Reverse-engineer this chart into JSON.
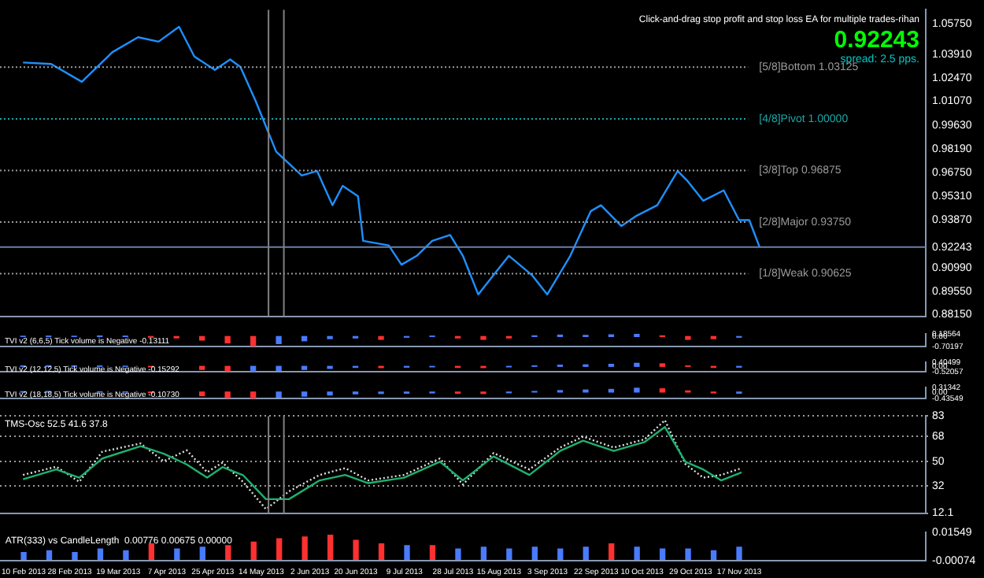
{
  "chart_data": [
    {
      "type": "line",
      "xlim": [
        "2013-02-01",
        "2014-01-29"
      ],
      "ylim": [
        0.8805,
        1.066
      ],
      "tick_labels": "y",
      "yticks": [
        {
          "value": 1.0575,
          "label": "1.05750"
        },
        {
          "value": 1.0391,
          "label": "1.03910"
        },
        {
          "value": 1.0247,
          "label": "1.02470"
        },
        {
          "value": 1.0107,
          "label": "1.01070"
        },
        {
          "value": 0.9963,
          "label": "0.99630"
        },
        {
          "value": 0.9819,
          "label": "0.98190"
        },
        {
          "value": 0.9675,
          "label": "0.96750"
        },
        {
          "value": 0.9531,
          "label": "0.95310"
        },
        {
          "value": 0.9387,
          "label": "0.93870"
        },
        {
          "value": 0.92243,
          "label": "0.92243"
        },
        {
          "value": 0.9099,
          "label": "0.90990"
        },
        {
          "value": 0.8955,
          "label": "0.89550"
        },
        {
          "value": 0.8815,
          "label": "0.88150"
        }
      ],
      "x": [
        "2013-02-10",
        "2013-02-21",
        "2013-03-05",
        "2013-03-17",
        "2013-03-27",
        "2013-04-04",
        "2013-04-12",
        "2013-04-18",
        "2013-04-26",
        "2013-05-02",
        "2013-05-06",
        "2013-05-12",
        "2013-05-20",
        "2013-05-30",
        "2013-06-05",
        "2013-06-11",
        "2013-06-15",
        "2013-06-21",
        "2013-06-23",
        "2013-07-03",
        "2013-07-08",
        "2013-07-14",
        "2013-07-20",
        "2013-07-27",
        "2013-08-01",
        "2013-08-07",
        "2013-08-13",
        "2013-08-19",
        "2013-08-28",
        "2013-09-03",
        "2013-09-12",
        "2013-09-20",
        "2013-09-24",
        "2013-10-02",
        "2013-10-08",
        "2013-10-16",
        "2013-10-24",
        "2013-10-28",
        "2013-11-03",
        "2013-11-11",
        "2013-11-17",
        "2013-11-21",
        "2013-11-25"
      ],
      "series": [
        {
          "color": "#1e90ff",
          "values": [
            1.0341,
            1.0332,
            1.0224,
            1.0404,
            1.0494,
            1.0467,
            1.0557,
            1.0377,
            1.0296,
            1.0359,
            1.0314,
            1.0107,
            0.9801,
            0.9657,
            0.9684,
            0.9477,
            0.9594,
            0.9531,
            0.9261,
            0.9234,
            0.9117,
            0.9171,
            0.9261,
            0.9297,
            0.9171,
            0.8937,
            0.9054,
            0.9171,
            0.9054,
            0.8937,
            0.9171,
            0.9441,
            0.9477,
            0.9351,
            0.9414,
            0.9477,
            0.9684,
            0.9621,
            0.9504,
            0.9567,
            0.9387,
            0.9387,
            0.9224
          ]
        }
      ],
      "ref_lines": [
        {
          "axis": "y",
          "value": 1.03125,
          "label": "[5/8]Bottom 1.03125",
          "color": "#9a9a9a",
          "line_style": "dotted"
        },
        {
          "axis": "y",
          "value": 1.0,
          "label": "[4/8]Pivot 1.00000",
          "color": "#1aa7a7",
          "line_style": "dotted"
        },
        {
          "axis": "y",
          "value": 0.96875,
          "label": "[3/8]Top 0.96875",
          "color": "#9a9a9a",
          "line_style": "dotted"
        },
        {
          "axis": "y",
          "value": 0.9375,
          "label": "[2/8]Major 0.93750",
          "color": "#9a9a9a",
          "line_style": "dotted"
        },
        {
          "axis": "y",
          "value": 0.90625,
          "label": "[1/8]Weak 0.90625",
          "color": "#9a9a9a",
          "line_style": "dotted"
        },
        {
          "axis": "y",
          "value": 0.92243,
          "color": "#6a7fa8",
          "line_style": "solid"
        },
        {
          "axis": "x",
          "value": "2013-05-17",
          "color": "#808080",
          "line_style": "solid"
        },
        {
          "axis": "x",
          "value": "2013-05-23",
          "color": "#808080",
          "line_style": "solid"
        }
      ],
      "annotations": [
        "Click-and-drag stop profit and stop loss EA for multiple trades-rihan",
        "0.92243",
        "spread: 2.5 pps."
      ]
    },
    {
      "type": "bar",
      "title": "TVI v2 (6,6,5) Tick volume is Negative -0.13111",
      "xlim": [
        "2013-02-01",
        "2014-01-29"
      ],
      "ylim": [
        -0.70197,
        0.18564
      ],
      "tick_labels": "y",
      "yticks": [
        {
          "value": 0.18564,
          "label": "0.18564"
        },
        {
          "value": 0,
          "label": "0.00"
        },
        {
          "value": -0.70197,
          "label": "-0.70197"
        }
      ],
      "x": [
        "2013-02-10",
        "2013-02-20",
        "2013-03-02",
        "2013-03-12",
        "2013-03-22",
        "2013-04-01",
        "2013-04-11",
        "2013-04-21",
        "2013-05-01",
        "2013-05-11",
        "2013-05-21",
        "2013-05-31",
        "2013-06-10",
        "2013-06-20",
        "2013-06-30",
        "2013-07-10",
        "2013-07-20",
        "2013-07-30",
        "2013-08-09",
        "2013-08-19",
        "2013-08-29",
        "2013-09-08",
        "2013-09-18",
        "2013-09-28",
        "2013-10-08",
        "2013-10-18",
        "2013-10-28",
        "2013-11-07",
        "2013-11-17"
      ],
      "values": [
        0.02,
        0.03,
        0.02,
        0.04,
        0.03,
        -0.05,
        -0.1,
        -0.25,
        -0.45,
        -0.65,
        -0.5,
        -0.3,
        -0.15,
        -0.1,
        -0.2,
        -0.05,
        0.03,
        -0.1,
        -0.2,
        -0.1,
        0.05,
        0.1,
        0.08,
        0.12,
        0.17,
        0.05,
        -0.2,
        -0.15,
        -0.05
      ],
      "colors": [
        "#4a7bff",
        "#4a7bff",
        "#4a7bff",
        "#4a7bff",
        "#4a7bff",
        "#ff3030",
        "#ff3030",
        "#ff3030",
        "#ff3030",
        "#ff3030",
        "#4a7bff",
        "#4a7bff",
        "#4a7bff",
        "#4a7bff",
        "#ff3030",
        "#4a7bff",
        "#4a7bff",
        "#ff3030",
        "#ff3030",
        "#ff3030",
        "#4a7bff",
        "#4a7bff",
        "#4a7bff",
        "#4a7bff",
        "#4a7bff",
        "#ff3030",
        "#ff3030",
        "#ff3030",
        "#4a7bff"
      ]
    },
    {
      "type": "bar",
      "title": "TVI v2 (12,12,5) Tick volume is Negative -0.15292",
      "xlim": [
        "2013-02-01",
        "2014-01-29"
      ],
      "ylim": [
        -0.52057,
        0.40499
      ],
      "tick_labels": "y",
      "yticks": [
        {
          "value": 0.40499,
          "label": "0.40499"
        },
        {
          "value": 0,
          "label": "0.00"
        },
        {
          "value": -0.52057,
          "label": "-0.52057"
        }
      ],
      "x": [
        "2013-02-10",
        "2013-02-20",
        "2013-03-02",
        "2013-03-12",
        "2013-03-22",
        "2013-04-01",
        "2013-04-11",
        "2013-04-21",
        "2013-05-01",
        "2013-05-11",
        "2013-05-21",
        "2013-05-31",
        "2013-06-10",
        "2013-06-20",
        "2013-06-30",
        "2013-07-10",
        "2013-07-20",
        "2013-07-30",
        "2013-08-09",
        "2013-08-19",
        "2013-08-29",
        "2013-09-08",
        "2013-09-18",
        "2013-09-28",
        "2013-10-08",
        "2013-10-18",
        "2013-10-28",
        "2013-11-07",
        "2013-11-17"
      ],
      "values": [
        0.05,
        0.06,
        0.05,
        0.04,
        0.02,
        -0.05,
        null,
        -0.3,
        -0.45,
        -0.5,
        -0.4,
        -0.3,
        -0.2,
        -0.1,
        -0.12,
        -0.08,
        -0.05,
        -0.1,
        -0.12,
        -0.05,
        0.05,
        0.12,
        0.15,
        0.2,
        0.3,
        0.25,
        0.05,
        -0.1,
        -0.08
      ],
      "colors": [
        "#4a7bff",
        "#4a7bff",
        "#4a7bff",
        "#4a7bff",
        "#4a7bff",
        "#ff3030",
        "#ff3030",
        "#ff3030",
        "#ff3030",
        "#4a7bff",
        "#4a7bff",
        "#4a7bff",
        "#4a7bff",
        "#4a7bff",
        "#ff3030",
        "#4a7bff",
        "#4a7bff",
        "#ff3030",
        "#ff3030",
        "#4a7bff",
        "#4a7bff",
        "#4a7bff",
        "#4a7bff",
        "#4a7bff",
        "#4a7bff",
        "#ff3030",
        "#ff3030",
        "#ff3030",
        "#4a7bff"
      ]
    },
    {
      "type": "bar",
      "title": "TVI v2 (18,18,5) Tick volume is Negative -0.10730",
      "xlim": [
        "2013-02-01",
        "2014-01-29"
      ],
      "ylim": [
        -0.43549,
        0.31342
      ],
      "tick_labels": "y",
      "yticks": [
        {
          "value": 0.31342,
          "label": "0.31342"
        },
        {
          "value": 0,
          "label": "0.00"
        },
        {
          "value": -0.43549,
          "label": "-0.43549"
        }
      ],
      "x": [
        "2013-02-10",
        "2013-02-20",
        "2013-03-02",
        "2013-03-12",
        "2013-03-22",
        "2013-04-01",
        "2013-04-11",
        "2013-04-21",
        "2013-05-01",
        "2013-05-11",
        "2013-05-21",
        "2013-05-31",
        "2013-06-10",
        "2013-06-20",
        "2013-06-30",
        "2013-07-10",
        "2013-07-20",
        "2013-07-30",
        "2013-08-09",
        "2013-08-19",
        "2013-08-29",
        "2013-09-08",
        "2013-09-18",
        "2013-09-28",
        "2013-10-08",
        "2013-10-18",
        "2013-10-28",
        "2013-11-07",
        "2013-11-17"
      ],
      "values": [
        0.03,
        0.04,
        null,
        0.02,
        0.01,
        -0.05,
        null,
        -0.25,
        -0.38,
        -0.42,
        -0.35,
        -0.28,
        -0.2,
        -0.12,
        -0.1,
        -0.08,
        -0.06,
        -0.08,
        -0.1,
        -0.05,
        0.04,
        0.1,
        0.14,
        0.18,
        0.26,
        0.22,
        0.08,
        -0.06,
        -0.08
      ],
      "colors": [
        "#4a7bff",
        "#4a7bff",
        "#4a7bff",
        "#4a7bff",
        "#4a7bff",
        "#ff3030",
        "#ff3030",
        "#ff3030",
        "#ff3030",
        "#ff3030",
        "#4a7bff",
        "#4a7bff",
        "#4a7bff",
        "#4a7bff",
        "#4a7bff",
        "#4a7bff",
        "#4a7bff",
        "#ff3030",
        "#ff3030",
        "#4a7bff",
        "#4a7bff",
        "#4a7bff",
        "#4a7bff",
        "#4a7bff",
        "#4a7bff",
        "#ff3030",
        "#ff3030",
        "#ff3030",
        "#4a7bff"
      ]
    },
    {
      "type": "line",
      "title": "TMS-Osc 52.5 41.6 37.8",
      "xlim": [
        "2013-02-01",
        "2014-01-29"
      ],
      "ylim": [
        12.1,
        83
      ],
      "yticks": [
        83,
        68,
        50,
        32,
        12.1
      ],
      "grid": "y",
      "tick_labels": "y",
      "x": [
        "2013-02-10",
        "2013-02-23",
        "2013-03-04",
        "2013-03-13",
        "2013-03-28",
        "2013-04-06",
        "2013-04-15",
        "2013-04-23",
        "2013-04-29",
        "2013-05-07",
        "2013-05-16",
        "2013-05-25",
        "2013-06-06",
        "2013-06-16",
        "2013-06-25",
        "2013-07-09",
        "2013-07-23",
        "2013-08-01",
        "2013-08-13",
        "2013-08-27",
        "2013-09-08",
        "2013-09-17",
        "2013-09-29",
        "2013-10-11",
        "2013-10-19",
        "2013-10-27",
        "2013-11-03",
        "2013-11-10",
        "2013-11-18"
      ],
      "series": [
        {
          "color": "#20b070",
          "line_style": "solid",
          "values": [
            36.8,
            44,
            38,
            52,
            61,
            55.5,
            47.7,
            38,
            45.7,
            39.9,
            22.3,
            22.3,
            36,
            40,
            34,
            38,
            49.6,
            36,
            53.5,
            40,
            57.5,
            65,
            57.5,
            64,
            75,
            49.6,
            44,
            36,
            41.8
          ]
        },
        {
          "color": "#e0e0e0",
          "line_style": "dotted",
          "values": [
            40,
            46,
            35,
            57,
            63,
            50,
            58,
            42,
            49,
            35,
            15,
            28,
            40,
            45,
            36,
            40,
            52,
            33,
            56,
            44,
            60,
            68,
            60,
            66,
            80,
            48,
            38,
            40,
            45
          ]
        }
      ],
      "ref_lines": [
        {
          "axis": "x",
          "value": "2013-05-17",
          "color": "#808080",
          "line_style": "solid"
        },
        {
          "axis": "x",
          "value": "2013-05-23",
          "color": "#808080",
          "line_style": "solid"
        }
      ]
    },
    {
      "type": "bar",
      "title": "ATR(333) vs CandleLength  0.00776 0.00675 0.00000",
      "xlim": [
        "2013-02-01",
        "2014-01-29"
      ],
      "ylim": [
        -0.00074,
        0.01549
      ],
      "yticks": [
        {
          "value": 0.01549,
          "label": "0.01549"
        },
        {
          "value": -0.00074,
          "label": "-0.00074"
        }
      ],
      "xticks": [
        {
          "value": "2013-02-10",
          "label": "10 Feb 2013"
        },
        {
          "value": "2013-02-28",
          "label": "28 Feb 2013"
        },
        {
          "value": "2013-03-19",
          "label": "19 Mar 2013"
        },
        {
          "value": "2013-04-07",
          "label": "7 Apr 2013"
        },
        {
          "value": "2013-04-25",
          "label": "25 Apr 2013"
        },
        {
          "value": "2013-05-14",
          "label": "14 May 2013"
        },
        {
          "value": "2013-06-02",
          "label": "2 Jun 2013"
        },
        {
          "value": "2013-06-20",
          "label": "20 Jun 2013"
        },
        {
          "value": "2013-07-09",
          "label": "9 Jul 2013"
        },
        {
          "value": "2013-07-28",
          "label": "28 Jul 2013"
        },
        {
          "value": "2013-08-15",
          "label": "15 Aug 2013"
        },
        {
          "value": "2013-09-03",
          "label": "3 Sep 2013"
        },
        {
          "value": "2013-09-22",
          "label": "22 Sep 2013"
        },
        {
          "value": "2013-10-10",
          "label": "10 Oct 2013"
        },
        {
          "value": "2013-10-29",
          "label": "29 Oct 2013"
        },
        {
          "value": "2013-11-17",
          "label": "17 Nov 2013"
        }
      ],
      "x": [
        "2013-02-10",
        "2013-02-20",
        "2013-03-02",
        "2013-03-12",
        "2013-03-22",
        "2013-04-01",
        "2013-04-11",
        "2013-04-21",
        "2013-05-01",
        "2013-05-11",
        "2013-05-21",
        "2013-05-31",
        "2013-06-10",
        "2013-06-20",
        "2013-06-30",
        "2013-07-10",
        "2013-07-20",
        "2013-07-30",
        "2013-08-09",
        "2013-08-19",
        "2013-08-29",
        "2013-09-08",
        "2013-09-18",
        "2013-09-28",
        "2013-10-08",
        "2013-10-18",
        "2013-10-28",
        "2013-11-07",
        "2013-11-17"
      ],
      "values": [
        0.004,
        0.005,
        0.004,
        0.006,
        0.005,
        0.009,
        0.006,
        0.007,
        0.008,
        0.01,
        0.012,
        0.013,
        0.014,
        0.011,
        0.009,
        0.008,
        0.008,
        0.006,
        0.007,
        0.006,
        0.007,
        0.006,
        0.007,
        0.009,
        0.007,
        0.006,
        0.006,
        0.005,
        0.007
      ],
      "colors": [
        "#4a7bff",
        "#4a7bff",
        "#4a7bff",
        "#4a7bff",
        "#4a7bff",
        "#ff3030",
        "#4a7bff",
        "#4a7bff",
        "#ff3030",
        "#ff3030",
        "#ff3030",
        "#ff3030",
        "#ff3030",
        "#ff3030",
        "#ff3030",
        "#4a7bff",
        "#ff3030",
        "#4a7bff",
        "#4a7bff",
        "#4a7bff",
        "#4a7bff",
        "#4a7bff",
        "#4a7bff",
        "#ff3030",
        "#4a7bff",
        "#4a7bff",
        "#4a7bff",
        "#4a7bff",
        "#4a7bff"
      ]
    }
  ]
}
